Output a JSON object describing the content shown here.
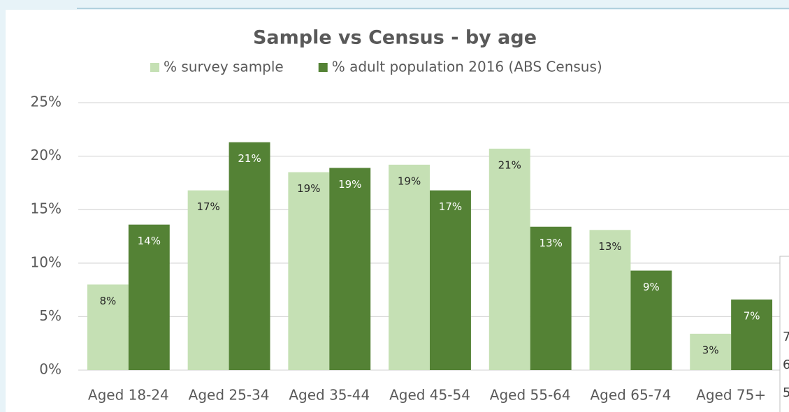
{
  "chart_data": {
    "type": "bar",
    "title": "Sample vs Census - by age",
    "categories": [
      "Aged 18-24",
      "Aged 25-34",
      "Aged 35-44",
      "Aged 45-54",
      "Aged 55-64",
      "Aged 65-74",
      "Aged 75+"
    ],
    "series": [
      {
        "name": "% survey sample",
        "color": "#c5e0b4",
        "values": [
          8.0,
          16.8,
          18.5,
          19.2,
          20.7,
          13.1,
          3.4
        ],
        "value_labels": [
          "8%",
          "17%",
          "19%",
          "19%",
          "21%",
          "13%",
          "3%"
        ]
      },
      {
        "name": "% adult population 2016 (ABS Census)",
        "color": "#548235",
        "values": [
          13.6,
          21.3,
          18.9,
          16.8,
          13.4,
          9.3,
          6.6
        ],
        "value_labels": [
          "14%",
          "21%",
          "19%",
          "17%",
          "13%",
          "9%",
          "7%"
        ]
      }
    ],
    "ylim": [
      0,
      25
    ],
    "yticks": [
      {
        "value": 0,
        "label": "0%"
      },
      {
        "value": 5,
        "label": "5%"
      },
      {
        "value": 10,
        "label": "10%"
      },
      {
        "value": 15,
        "label": "15%"
      },
      {
        "value": 20,
        "label": "20%"
      },
      {
        "value": 25,
        "label": "25%"
      }
    ],
    "grid": true,
    "legend": "top",
    "overlay_fragments": [
      "7",
      "6",
      "5"
    ]
  }
}
